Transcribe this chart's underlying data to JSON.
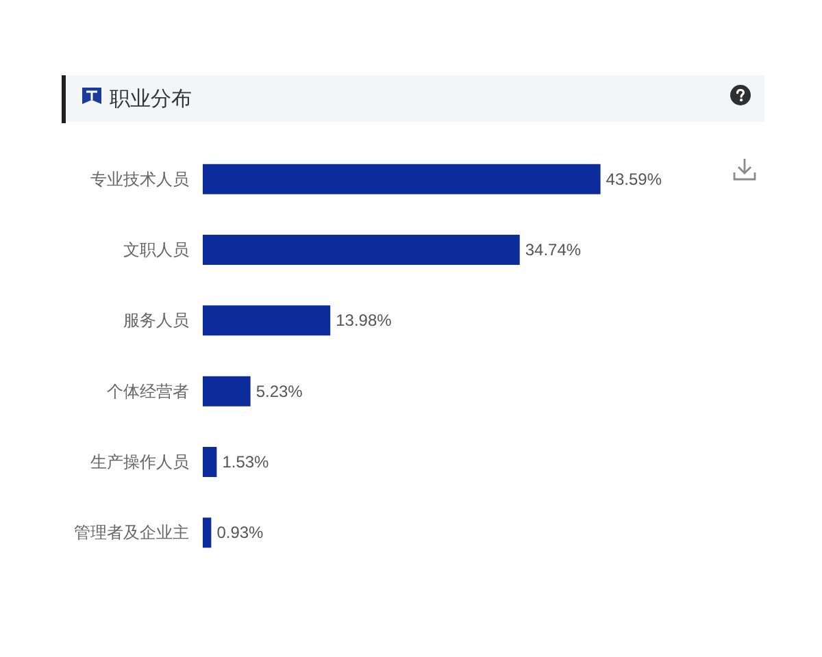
{
  "chart_data": {
    "type": "bar",
    "orientation": "horizontal",
    "title": "职业分布",
    "categories": [
      "专业技术人员",
      "文职人员",
      "服务人员",
      "个体经营者",
      "生产操作人员",
      "管理者及企业主"
    ],
    "values": [
      43.59,
      34.74,
      13.98,
      5.23,
      1.53,
      0.93
    ],
    "color": "#0d2c9c",
    "value_labels": [
      "43.59%",
      "34.74%",
      "13.98%",
      "5.23%",
      "1.53%",
      "0.93%"
    ]
  }
}
